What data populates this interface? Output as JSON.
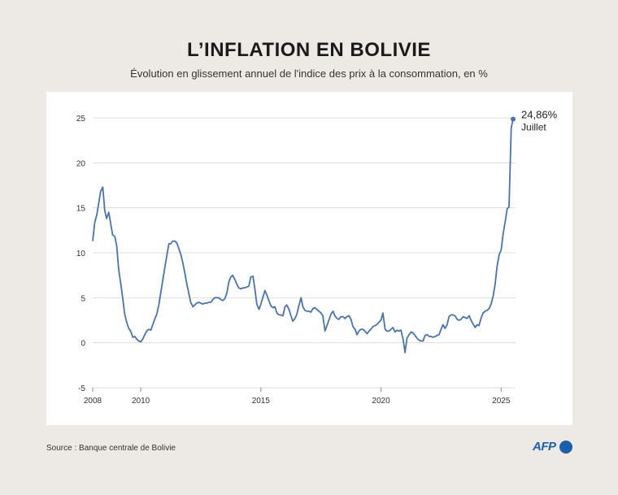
{
  "header": {
    "title": "L’INFLATION EN BOLIVIE",
    "subtitle": "Évolution en glissement annuel de l'indice des prix à la consommation, en %"
  },
  "footer": {
    "source": "Source : Banque centrale de Bolivie",
    "logo_text": "AFP"
  },
  "colors": {
    "background": "#edeae5",
    "panel": "#ffffff",
    "line": "#4a73a8",
    "grid": "#dddddd"
  },
  "chart_data": {
    "type": "line",
    "title": "L’INFLATION EN BOLIVIE",
    "subtitle": "Évolution en glissement annuel de l'indice des prix à la consommation, en %",
    "xlabel": "",
    "ylabel": "",
    "xlim": [
      2008,
      2025.6
    ],
    "ylim": [
      -5,
      25
    ],
    "x_ticks": [
      2008,
      2010,
      2015,
      2020,
      2025
    ],
    "x_tick_labels": [
      "2008",
      "2010",
      "2015",
      "2020",
      "2025"
    ],
    "y_ticks": [
      -5,
      0,
      5,
      10,
      15,
      20,
      25
    ],
    "y_tick_labels": [
      "-5",
      "0",
      "5",
      "10",
      "15",
      "20",
      "25"
    ],
    "grid": true,
    "annotation": {
      "value_label": "24,86%",
      "month_label": "Juillet",
      "x": 2025.5,
      "y": 24.86
    },
    "series": [
      {
        "points": [
          [
            2008.0,
            11.3
          ],
          [
            2008.08,
            13.3
          ],
          [
            2008.17,
            14.2
          ],
          [
            2008.25,
            15.5
          ],
          [
            2008.33,
            16.8
          ],
          [
            2008.42,
            17.3
          ],
          [
            2008.5,
            14.7
          ],
          [
            2008.58,
            13.8
          ],
          [
            2008.67,
            14.5
          ],
          [
            2008.75,
            13.2
          ],
          [
            2008.83,
            12.0
          ],
          [
            2008.92,
            11.8
          ],
          [
            2009.0,
            10.8
          ],
          [
            2009.08,
            8.2
          ],
          [
            2009.17,
            6.5
          ],
          [
            2009.25,
            5.0
          ],
          [
            2009.33,
            3.2
          ],
          [
            2009.42,
            2.2
          ],
          [
            2009.5,
            1.6
          ],
          [
            2009.58,
            1.3
          ],
          [
            2009.67,
            0.6
          ],
          [
            2009.75,
            0.7
          ],
          [
            2009.83,
            0.4
          ],
          [
            2009.92,
            0.2
          ],
          [
            2010.0,
            0.1
          ],
          [
            2010.08,
            0.4
          ],
          [
            2010.17,
            0.9
          ],
          [
            2010.25,
            1.3
          ],
          [
            2010.33,
            1.5
          ],
          [
            2010.42,
            1.4
          ],
          [
            2010.5,
            2.0
          ],
          [
            2010.58,
            2.6
          ],
          [
            2010.67,
            3.2
          ],
          [
            2010.75,
            4.2
          ],
          [
            2010.83,
            5.5
          ],
          [
            2010.92,
            7.0
          ],
          [
            2011.0,
            8.3
          ],
          [
            2011.08,
            9.6
          ],
          [
            2011.17,
            11.0
          ],
          [
            2011.25,
            11.0
          ],
          [
            2011.33,
            11.3
          ],
          [
            2011.42,
            11.3
          ],
          [
            2011.5,
            11.1
          ],
          [
            2011.58,
            10.5
          ],
          [
            2011.67,
            9.8
          ],
          [
            2011.75,
            8.9
          ],
          [
            2011.83,
            7.8
          ],
          [
            2011.92,
            6.5
          ],
          [
            2012.0,
            5.5
          ],
          [
            2012.08,
            4.5
          ],
          [
            2012.17,
            4.0
          ],
          [
            2012.25,
            4.2
          ],
          [
            2012.33,
            4.4
          ],
          [
            2012.42,
            4.5
          ],
          [
            2012.5,
            4.4
          ],
          [
            2012.58,
            4.3
          ],
          [
            2012.67,
            4.4
          ],
          [
            2012.75,
            4.4
          ],
          [
            2012.83,
            4.5
          ],
          [
            2012.92,
            4.5
          ],
          [
            2013.0,
            4.8
          ],
          [
            2013.08,
            5.0
          ],
          [
            2013.17,
            5.0
          ],
          [
            2013.25,
            5.0
          ],
          [
            2013.33,
            4.8
          ],
          [
            2013.42,
            4.7
          ],
          [
            2013.5,
            4.9
          ],
          [
            2013.58,
            5.5
          ],
          [
            2013.67,
            6.8
          ],
          [
            2013.75,
            7.3
          ],
          [
            2013.83,
            7.5
          ],
          [
            2013.92,
            7.0
          ],
          [
            2014.0,
            6.5
          ],
          [
            2014.08,
            6.1
          ],
          [
            2014.17,
            6.0
          ],
          [
            2014.25,
            6.1
          ],
          [
            2014.33,
            6.1
          ],
          [
            2014.42,
            6.2
          ],
          [
            2014.5,
            6.3
          ],
          [
            2014.58,
            7.3
          ],
          [
            2014.67,
            7.4
          ],
          [
            2014.75,
            6.0
          ],
          [
            2014.83,
            4.3
          ],
          [
            2014.92,
            3.7
          ],
          [
            2015.0,
            4.3
          ],
          [
            2015.08,
            5.0
          ],
          [
            2015.17,
            5.8
          ],
          [
            2015.25,
            5.3
          ],
          [
            2015.33,
            4.7
          ],
          [
            2015.42,
            4.1
          ],
          [
            2015.5,
            3.9
          ],
          [
            2015.58,
            4.0
          ],
          [
            2015.67,
            3.3
          ],
          [
            2015.75,
            3.1
          ],
          [
            2015.83,
            3.1
          ],
          [
            2015.92,
            3.0
          ],
          [
            2016.0,
            4.0
          ],
          [
            2016.08,
            4.2
          ],
          [
            2016.17,
            3.7
          ],
          [
            2016.25,
            3.0
          ],
          [
            2016.33,
            2.4
          ],
          [
            2016.42,
            2.7
          ],
          [
            2016.5,
            3.2
          ],
          [
            2016.58,
            4.1
          ],
          [
            2016.67,
            5.0
          ],
          [
            2016.75,
            4.0
          ],
          [
            2016.83,
            3.6
          ],
          [
            2016.92,
            3.5
          ],
          [
            2017.0,
            3.5
          ],
          [
            2017.08,
            3.4
          ],
          [
            2017.17,
            3.8
          ],
          [
            2017.25,
            3.9
          ],
          [
            2017.33,
            3.7
          ],
          [
            2017.42,
            3.5
          ],
          [
            2017.5,
            3.3
          ],
          [
            2017.58,
            3.0
          ],
          [
            2017.67,
            1.3
          ],
          [
            2017.75,
            1.9
          ],
          [
            2017.83,
            2.5
          ],
          [
            2017.92,
            3.2
          ],
          [
            2018.0,
            3.5
          ],
          [
            2018.08,
            3.0
          ],
          [
            2018.17,
            2.7
          ],
          [
            2018.25,
            2.6
          ],
          [
            2018.33,
            2.9
          ],
          [
            2018.42,
            2.9
          ],
          [
            2018.5,
            2.7
          ],
          [
            2018.58,
            2.9
          ],
          [
            2018.67,
            3.0
          ],
          [
            2018.75,
            2.6
          ],
          [
            2018.83,
            1.8
          ],
          [
            2018.92,
            1.5
          ],
          [
            2019.0,
            0.9
          ],
          [
            2019.08,
            1.3
          ],
          [
            2019.17,
            1.5
          ],
          [
            2019.25,
            1.5
          ],
          [
            2019.33,
            1.3
          ],
          [
            2019.42,
            1.0
          ],
          [
            2019.5,
            1.3
          ],
          [
            2019.58,
            1.5
          ],
          [
            2019.67,
            1.8
          ],
          [
            2019.75,
            1.9
          ],
          [
            2019.83,
            2.0
          ],
          [
            2019.92,
            2.3
          ],
          [
            2020.0,
            2.5
          ],
          [
            2020.08,
            3.3
          ],
          [
            2020.17,
            1.5
          ],
          [
            2020.25,
            1.3
          ],
          [
            2020.33,
            1.3
          ],
          [
            2020.42,
            1.5
          ],
          [
            2020.5,
            1.7
          ],
          [
            2020.58,
            1.2
          ],
          [
            2020.67,
            1.4
          ],
          [
            2020.75,
            1.3
          ],
          [
            2020.83,
            1.4
          ],
          [
            2020.92,
            0.4
          ],
          [
            2021.0,
            -1.1
          ],
          [
            2021.08,
            0.5
          ],
          [
            2021.17,
            0.9
          ],
          [
            2021.25,
            1.2
          ],
          [
            2021.33,
            1.1
          ],
          [
            2021.42,
            0.8
          ],
          [
            2021.5,
            0.5
          ],
          [
            2021.58,
            0.3
          ],
          [
            2021.67,
            0.2
          ],
          [
            2021.75,
            0.2
          ],
          [
            2021.83,
            0.8
          ],
          [
            2021.92,
            0.9
          ],
          [
            2022.0,
            0.7
          ],
          [
            2022.08,
            0.7
          ],
          [
            2022.17,
            0.6
          ],
          [
            2022.25,
            0.7
          ],
          [
            2022.33,
            0.8
          ],
          [
            2022.42,
            0.9
          ],
          [
            2022.5,
            1.5
          ],
          [
            2022.58,
            2.0
          ],
          [
            2022.67,
            1.6
          ],
          [
            2022.75,
            2.0
          ],
          [
            2022.83,
            2.9
          ],
          [
            2022.92,
            3.1
          ],
          [
            2023.0,
            3.1
          ],
          [
            2023.08,
            3.0
          ],
          [
            2023.17,
            2.6
          ],
          [
            2023.25,
            2.5
          ],
          [
            2023.33,
            2.6
          ],
          [
            2023.42,
            2.9
          ],
          [
            2023.5,
            2.8
          ],
          [
            2023.58,
            2.7
          ],
          [
            2023.67,
            3.0
          ],
          [
            2023.75,
            2.5
          ],
          [
            2023.83,
            2.1
          ],
          [
            2023.92,
            1.7
          ],
          [
            2024.0,
            2.0
          ],
          [
            2024.08,
            1.9
          ],
          [
            2024.17,
            2.8
          ],
          [
            2024.25,
            3.3
          ],
          [
            2024.33,
            3.5
          ],
          [
            2024.42,
            3.6
          ],
          [
            2024.5,
            3.8
          ],
          [
            2024.58,
            4.3
          ],
          [
            2024.67,
            5.2
          ],
          [
            2024.75,
            6.5
          ],
          [
            2024.83,
            8.5
          ],
          [
            2024.92,
            9.8
          ],
          [
            2025.0,
            10.3
          ],
          [
            2025.08,
            12.0
          ],
          [
            2025.17,
            13.5
          ],
          [
            2025.25,
            14.9
          ],
          [
            2025.33,
            15.1
          ],
          [
            2025.42,
            23.9
          ],
          [
            2025.5,
            24.86
          ]
        ]
      }
    ]
  }
}
